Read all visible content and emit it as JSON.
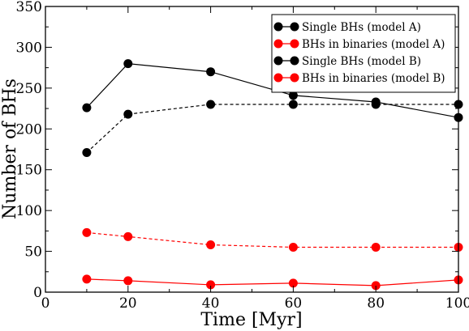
{
  "chart_data": {
    "type": "line",
    "title": "",
    "xlabel": "Time [Myr]",
    "ylabel": "Number of BHs",
    "xlim": [
      0,
      100
    ],
    "ylim": [
      0,
      350
    ],
    "xticks": [
      0,
      20,
      40,
      60,
      80,
      100
    ],
    "yticks": [
      0,
      50,
      100,
      150,
      200,
      250,
      300,
      350
    ],
    "grid": false,
    "legend_position": "top-right",
    "series": [
      {
        "name": "Single BHs (model A)",
        "color": "#000000",
        "dashed": false,
        "x": [
          10,
          20,
          40,
          60,
          80,
          100
        ],
        "y": [
          226,
          280,
          270,
          241,
          233,
          214
        ]
      },
      {
        "name": "BHs in binaries (model A)",
        "color": "#ff0000",
        "dashed": false,
        "x": [
          10,
          20,
          40,
          60,
          80,
          100
        ],
        "y": [
          16,
          14,
          9,
          11,
          8,
          15
        ]
      },
      {
        "name": "Single BHs (model B)",
        "color": "#000000",
        "dashed": true,
        "x": [
          10,
          20,
          40,
          60,
          80,
          100
        ],
        "y": [
          171,
          218,
          230,
          230,
          230,
          230
        ]
      },
      {
        "name": "BHs in binaries (model B)",
        "color": "#ff0000",
        "dashed": true,
        "x": [
          10,
          20,
          40,
          60,
          80,
          100
        ],
        "y": [
          73,
          68,
          58,
          55,
          55,
          55
        ]
      }
    ]
  }
}
